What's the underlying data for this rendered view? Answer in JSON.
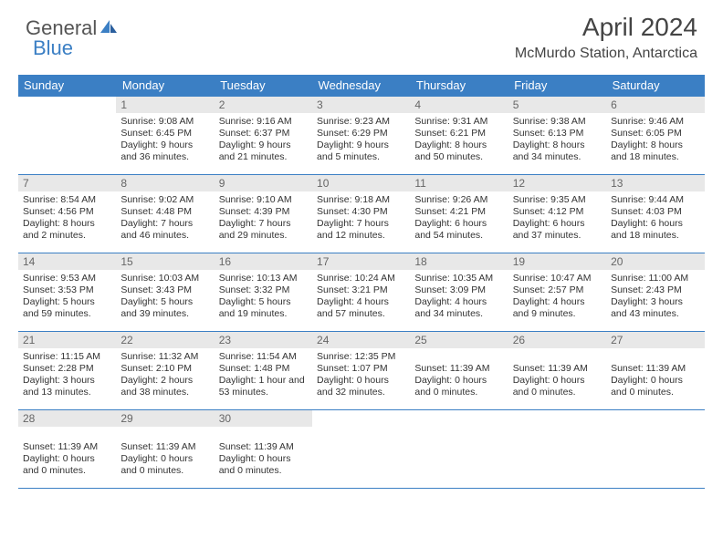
{
  "logo": {
    "text1": "General",
    "text2": "Blue"
  },
  "header": {
    "title": "April 2024",
    "location": "McMurdo Station, Antarctica"
  },
  "colors": {
    "brand": "#3b7fc4",
    "dayHeaderBg": "#e8e8e8",
    "text": "#333333",
    "headerText": "#444444"
  },
  "weekdays": [
    "Sunday",
    "Monday",
    "Tuesday",
    "Wednesday",
    "Thursday",
    "Friday",
    "Saturday"
  ],
  "weeks": [
    [
      {
        "day": "",
        "lines": []
      },
      {
        "day": "1",
        "lines": [
          "Sunrise: 9:08 AM",
          "Sunset: 6:45 PM",
          "Daylight: 9 hours",
          "and 36 minutes."
        ]
      },
      {
        "day": "2",
        "lines": [
          "Sunrise: 9:16 AM",
          "Sunset: 6:37 PM",
          "Daylight: 9 hours",
          "and 21 minutes."
        ]
      },
      {
        "day": "3",
        "lines": [
          "Sunrise: 9:23 AM",
          "Sunset: 6:29 PM",
          "Daylight: 9 hours",
          "and 5 minutes."
        ]
      },
      {
        "day": "4",
        "lines": [
          "Sunrise: 9:31 AM",
          "Sunset: 6:21 PM",
          "Daylight: 8 hours",
          "and 50 minutes."
        ]
      },
      {
        "day": "5",
        "lines": [
          "Sunrise: 9:38 AM",
          "Sunset: 6:13 PM",
          "Daylight: 8 hours",
          "and 34 minutes."
        ]
      },
      {
        "day": "6",
        "lines": [
          "Sunrise: 9:46 AM",
          "Sunset: 6:05 PM",
          "Daylight: 8 hours",
          "and 18 minutes."
        ]
      }
    ],
    [
      {
        "day": "7",
        "lines": [
          "Sunrise: 8:54 AM",
          "Sunset: 4:56 PM",
          "Daylight: 8 hours",
          "and 2 minutes."
        ]
      },
      {
        "day": "8",
        "lines": [
          "Sunrise: 9:02 AM",
          "Sunset: 4:48 PM",
          "Daylight: 7 hours",
          "and 46 minutes."
        ]
      },
      {
        "day": "9",
        "lines": [
          "Sunrise: 9:10 AM",
          "Sunset: 4:39 PM",
          "Daylight: 7 hours",
          "and 29 minutes."
        ]
      },
      {
        "day": "10",
        "lines": [
          "Sunrise: 9:18 AM",
          "Sunset: 4:30 PM",
          "Daylight: 7 hours",
          "and 12 minutes."
        ]
      },
      {
        "day": "11",
        "lines": [
          "Sunrise: 9:26 AM",
          "Sunset: 4:21 PM",
          "Daylight: 6 hours",
          "and 54 minutes."
        ]
      },
      {
        "day": "12",
        "lines": [
          "Sunrise: 9:35 AM",
          "Sunset: 4:12 PM",
          "Daylight: 6 hours",
          "and 37 minutes."
        ]
      },
      {
        "day": "13",
        "lines": [
          "Sunrise: 9:44 AM",
          "Sunset: 4:03 PM",
          "Daylight: 6 hours",
          "and 18 minutes."
        ]
      }
    ],
    [
      {
        "day": "14",
        "lines": [
          "Sunrise: 9:53 AM",
          "Sunset: 3:53 PM",
          "Daylight: 5 hours",
          "and 59 minutes."
        ]
      },
      {
        "day": "15",
        "lines": [
          "Sunrise: 10:03 AM",
          "Sunset: 3:43 PM",
          "Daylight: 5 hours",
          "and 39 minutes."
        ]
      },
      {
        "day": "16",
        "lines": [
          "Sunrise: 10:13 AM",
          "Sunset: 3:32 PM",
          "Daylight: 5 hours",
          "and 19 minutes."
        ]
      },
      {
        "day": "17",
        "lines": [
          "Sunrise: 10:24 AM",
          "Sunset: 3:21 PM",
          "Daylight: 4 hours",
          "and 57 minutes."
        ]
      },
      {
        "day": "18",
        "lines": [
          "Sunrise: 10:35 AM",
          "Sunset: 3:09 PM",
          "Daylight: 4 hours",
          "and 34 minutes."
        ]
      },
      {
        "day": "19",
        "lines": [
          "Sunrise: 10:47 AM",
          "Sunset: 2:57 PM",
          "Daylight: 4 hours",
          "and 9 minutes."
        ]
      },
      {
        "day": "20",
        "lines": [
          "Sunrise: 11:00 AM",
          "Sunset: 2:43 PM",
          "Daylight: 3 hours",
          "and 43 minutes."
        ]
      }
    ],
    [
      {
        "day": "21",
        "lines": [
          "Sunrise: 11:15 AM",
          "Sunset: 2:28 PM",
          "Daylight: 3 hours",
          "and 13 minutes."
        ]
      },
      {
        "day": "22",
        "lines": [
          "Sunrise: 11:32 AM",
          "Sunset: 2:10 PM",
          "Daylight: 2 hours",
          "and 38 minutes."
        ]
      },
      {
        "day": "23",
        "lines": [
          "Sunrise: 11:54 AM",
          "Sunset: 1:48 PM",
          "Daylight: 1 hour and",
          "53 minutes."
        ]
      },
      {
        "day": "24",
        "lines": [
          "Sunrise: 12:35 PM",
          "Sunset: 1:07 PM",
          "Daylight: 0 hours",
          "and 32 minutes."
        ]
      },
      {
        "day": "25",
        "lines": [
          "",
          "Sunset: 11:39 AM",
          "Daylight: 0 hours",
          "and 0 minutes."
        ]
      },
      {
        "day": "26",
        "lines": [
          "",
          "Sunset: 11:39 AM",
          "Daylight: 0 hours",
          "and 0 minutes."
        ]
      },
      {
        "day": "27",
        "lines": [
          "",
          "Sunset: 11:39 AM",
          "Daylight: 0 hours",
          "and 0 minutes."
        ]
      }
    ],
    [
      {
        "day": "28",
        "lines": [
          "",
          "Sunset: 11:39 AM",
          "Daylight: 0 hours",
          "and 0 minutes."
        ]
      },
      {
        "day": "29",
        "lines": [
          "",
          "Sunset: 11:39 AM",
          "Daylight: 0 hours",
          "and 0 minutes."
        ]
      },
      {
        "day": "30",
        "lines": [
          "",
          "Sunset: 11:39 AM",
          "Daylight: 0 hours",
          "and 0 minutes."
        ]
      },
      {
        "day": "",
        "lines": []
      },
      {
        "day": "",
        "lines": []
      },
      {
        "day": "",
        "lines": []
      },
      {
        "day": "",
        "lines": []
      }
    ]
  ]
}
